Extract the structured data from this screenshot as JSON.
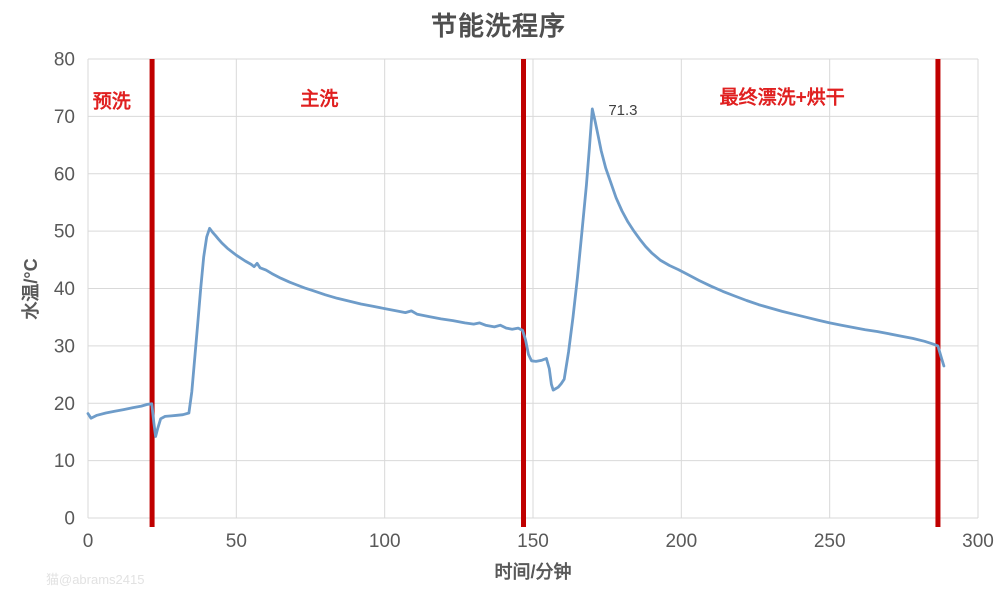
{
  "chart": {
    "title": "节能洗程序",
    "xlabel": "时间/分钟",
    "ylabel": "水温/°C",
    "watermark": "猫@abrams2415"
  },
  "chart_data": {
    "type": "line",
    "title": "节能洗程序",
    "xlabel": "时间/分钟",
    "ylabel": "水温/°C",
    "xlim": [
      0,
      300
    ],
    "ylim": [
      0,
      80
    ],
    "xticks": [
      0,
      50,
      100,
      150,
      200,
      250,
      300
    ],
    "yticks": [
      0,
      10,
      20,
      30,
      40,
      50,
      60,
      70,
      80
    ],
    "grid": true,
    "legend": "none",
    "colors": {
      "grid": "#d9d9d9",
      "tick_text": "#595959",
      "series": "#6e9cc9",
      "boundary_line": "#c00000",
      "phase_label_text": "#e02020",
      "annotation_text": "#404040"
    },
    "series": [
      {
        "name": "水温",
        "color": "#6e9cc9",
        "points": [
          [
            0,
            18.2
          ],
          [
            1,
            17.4
          ],
          [
            3,
            17.9
          ],
          [
            6,
            18.3
          ],
          [
            9,
            18.6
          ],
          [
            12,
            18.9
          ],
          [
            15,
            19.2
          ],
          [
            18,
            19.5
          ],
          [
            20,
            19.8
          ],
          [
            21.5,
            19.9
          ],
          [
            22.2,
            16.5
          ],
          [
            22.8,
            14.2
          ],
          [
            23.5,
            15.6
          ],
          [
            24.5,
            17.3
          ],
          [
            26,
            17.7
          ],
          [
            28,
            17.8
          ],
          [
            30,
            17.9
          ],
          [
            32,
            18.0
          ],
          [
            34,
            18.3
          ],
          [
            35,
            22
          ],
          [
            36,
            28
          ],
          [
            37,
            34
          ],
          [
            38,
            40
          ],
          [
            39,
            45.5
          ],
          [
            40,
            49
          ],
          [
            41,
            50.5
          ],
          [
            42,
            49.8
          ],
          [
            43,
            49.2
          ],
          [
            44,
            48.6
          ],
          [
            45,
            48.0
          ],
          [
            47,
            47.0
          ],
          [
            50,
            45.8
          ],
          [
            53,
            44.8
          ],
          [
            55,
            44.2
          ],
          [
            56,
            43.8
          ],
          [
            57,
            44.4
          ],
          [
            58,
            43.6
          ],
          [
            60,
            43.2
          ],
          [
            62,
            42.6
          ],
          [
            65,
            41.8
          ],
          [
            68,
            41.1
          ],
          [
            70,
            40.7
          ],
          [
            73,
            40.1
          ],
          [
            76,
            39.6
          ],
          [
            80,
            38.9
          ],
          [
            84,
            38.3
          ],
          [
            88,
            37.8
          ],
          [
            92,
            37.3
          ],
          [
            96,
            36.9
          ],
          [
            100,
            36.5
          ],
          [
            104,
            36.1
          ],
          [
            107,
            35.8
          ],
          [
            109,
            36.1
          ],
          [
            111,
            35.5
          ],
          [
            115,
            35.1
          ],
          [
            119,
            34.7
          ],
          [
            123,
            34.4
          ],
          [
            127,
            34.0
          ],
          [
            130,
            33.8
          ],
          [
            132,
            34.0
          ],
          [
            134,
            33.6
          ],
          [
            137,
            33.3
          ],
          [
            139,
            33.6
          ],
          [
            141,
            33.1
          ],
          [
            143,
            32.9
          ],
          [
            145,
            33.1
          ],
          [
            146.5,
            32.7
          ],
          [
            147.5,
            31.0
          ],
          [
            148.5,
            28.5
          ],
          [
            149.5,
            27.4
          ],
          [
            151,
            27.3
          ],
          [
            153,
            27.5
          ],
          [
            154.5,
            27.8
          ],
          [
            155.5,
            26.0
          ],
          [
            156.2,
            23.3
          ],
          [
            156.8,
            22.3
          ],
          [
            157.5,
            22.5
          ],
          [
            158.5,
            22.8
          ],
          [
            159.5,
            23.4
          ],
          [
            160.5,
            24.2
          ],
          [
            162,
            29
          ],
          [
            163.5,
            35
          ],
          [
            165,
            42
          ],
          [
            166.5,
            50
          ],
          [
            168,
            58
          ],
          [
            169,
            64.5
          ],
          [
            170,
            71.3
          ],
          [
            171,
            69
          ],
          [
            172,
            66.5
          ],
          [
            173,
            64
          ],
          [
            174.5,
            61
          ],
          [
            176,
            58.8
          ],
          [
            178,
            55.8
          ],
          [
            180,
            53.5
          ],
          [
            182,
            51.6
          ],
          [
            184,
            50.0
          ],
          [
            186,
            48.6
          ],
          [
            188,
            47.3
          ],
          [
            190,
            46.2
          ],
          [
            193,
            44.9
          ],
          [
            196,
            44.0
          ],
          [
            199,
            43.3
          ],
          [
            202,
            42.5
          ],
          [
            206,
            41.4
          ],
          [
            210,
            40.4
          ],
          [
            214,
            39.5
          ],
          [
            218,
            38.7
          ],
          [
            222,
            37.9
          ],
          [
            226,
            37.2
          ],
          [
            230,
            36.6
          ],
          [
            234,
            36.0
          ],
          [
            238,
            35.5
          ],
          [
            242,
            35.0
          ],
          [
            246,
            34.5
          ],
          [
            250,
            34.0
          ],
          [
            254,
            33.6
          ],
          [
            258,
            33.2
          ],
          [
            262,
            32.8
          ],
          [
            266,
            32.5
          ],
          [
            270,
            32.1
          ],
          [
            274,
            31.7
          ],
          [
            278,
            31.3
          ],
          [
            282,
            30.8
          ],
          [
            285,
            30.3
          ],
          [
            286.5,
            30.0
          ],
          [
            287.5,
            28.2
          ],
          [
            288.5,
            26.5
          ]
        ]
      }
    ],
    "phase_boundaries": {
      "color": "#c00000",
      "times": [
        21.6,
        146.8,
        286.5
      ]
    },
    "phase_labels": [
      {
        "text": "预洗",
        "t": 8,
        "temp": 72.8
      },
      {
        "text": "主洗",
        "t": 78,
        "temp": 73.2
      },
      {
        "text": "最终漂洗+烘干",
        "t": 234,
        "temp": 73.5
      }
    ],
    "annotations": [
      {
        "text": "71.3",
        "t": 170,
        "temp": 71.3
      }
    ]
  }
}
